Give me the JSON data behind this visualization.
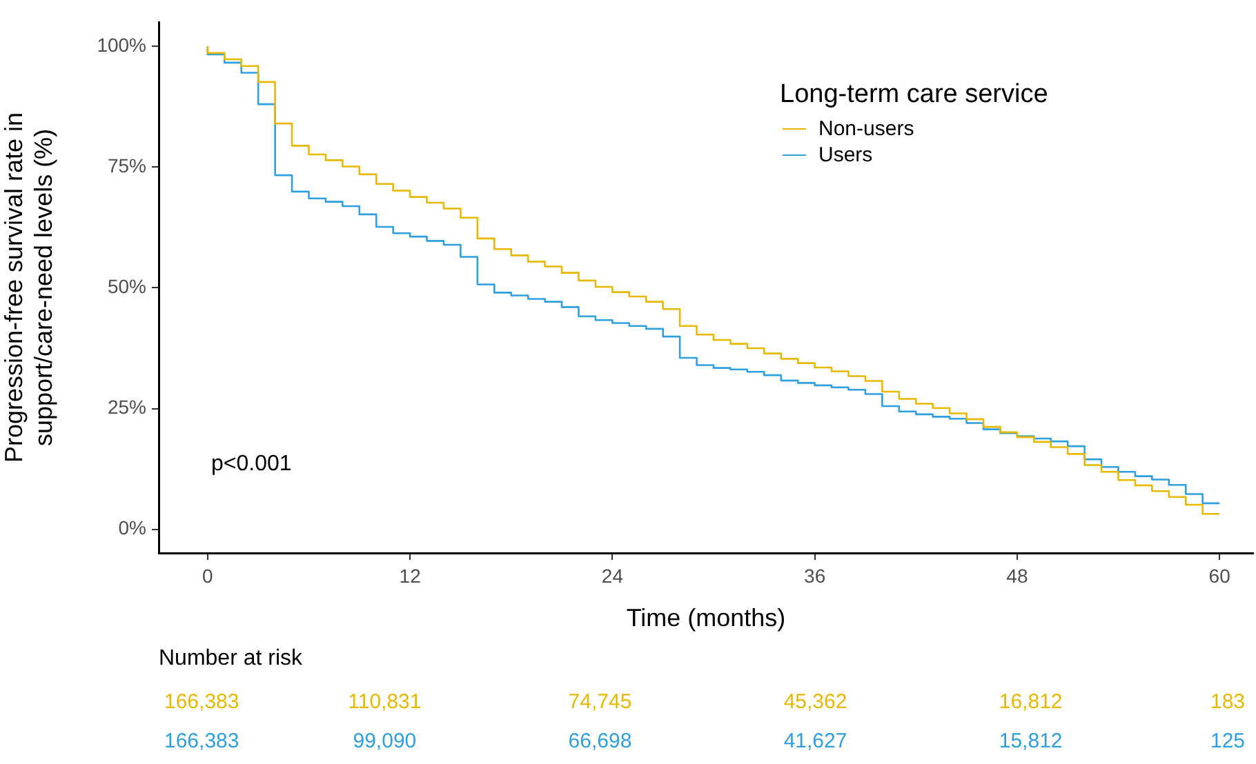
{
  "chart_data": [
    {
      "type": "step",
      "xlabel": "Time (months)",
      "ylabel": "Progression-free survival rate in\nsupport/care-need levels (%)",
      "legend_title": "Long-term care service",
      "legend": "top right",
      "annotations": [
        "p<0.001"
      ],
      "xlim": [
        -2.9,
        62
      ],
      "xticks": [
        0,
        12,
        24,
        36,
        48,
        60
      ],
      "ylim": [
        -4.9,
        105
      ],
      "yticks": [
        {
          "value": 0,
          "label": "0%"
        },
        {
          "value": 25,
          "label": "25%"
        },
        {
          "value": 50,
          "label": "50%"
        },
        {
          "value": 75,
          "label": "75%"
        },
        {
          "value": 100,
          "label": "100%"
        }
      ],
      "x": [
        0,
        1,
        2,
        3,
        4,
        5,
        6,
        7,
        8,
        9,
        10,
        11,
        12,
        13,
        14,
        15,
        16,
        17,
        18,
        19,
        20,
        21,
        22,
        23,
        24,
        25,
        26,
        27,
        28,
        29,
        30,
        31,
        32,
        33,
        34,
        35,
        36,
        37,
        38,
        39,
        40,
        41,
        42,
        43,
        44,
        45,
        46,
        47,
        48,
        49,
        50,
        51,
        52,
        53,
        54,
        55,
        56,
        57,
        58,
        59,
        60
      ],
      "series": [
        {
          "name": "Non-users",
          "color": "#e7b800",
          "values": [
            100,
            98.6,
            97.3,
            95.9,
            92.6,
            84,
            79.4,
            77.6,
            76.4,
            75.1,
            73.5,
            71.5,
            70.1,
            68.8,
            67.6,
            66.4,
            64.5,
            60.2,
            58,
            56.7,
            55.4,
            54.4,
            53.1,
            51.5,
            50.2,
            49.1,
            48.2,
            47.1,
            45.6,
            42.1,
            40.3,
            39.2,
            38.4,
            37.5,
            36.4,
            35.3,
            34.4,
            33.5,
            32.7,
            31.7,
            30.7,
            28.5,
            27,
            26,
            25.1,
            24,
            22.8,
            21.2,
            20.1,
            19.1,
            18.1,
            17,
            15.6,
            13.3,
            11.9,
            10.2,
            9.1,
            7.9,
            6.7,
            5.1,
            3.2
          ]
        },
        {
          "name": "Users",
          "color": "#2e9fdf",
          "values": [
            100,
            98.3,
            96.6,
            94.5,
            88,
            73.3,
            69.9,
            68.5,
            67.8,
            66.9,
            65.2,
            62.6,
            61.3,
            60.6,
            59.7,
            58.9,
            56.4,
            50.7,
            49,
            48.4,
            47.7,
            47.1,
            46,
            44.1,
            43.3,
            42.7,
            42.1,
            41.5,
            39.9,
            35.5,
            34,
            33.4,
            33.1,
            32.6,
            31.9,
            30.8,
            30.3,
            29.8,
            29.4,
            28.9,
            28,
            25.5,
            24.4,
            23.8,
            23.3,
            22.9,
            22,
            20.7,
            19.9,
            19.3,
            18.8,
            18.2,
            17.2,
            14.5,
            12.9,
            11.9,
            11,
            10.3,
            9.2,
            7.3,
            5.4
          ]
        }
      ]
    },
    {
      "type": "other",
      "title": "Number at risk",
      "categories": [
        null,
        null,
        null,
        null,
        null,
        null
      ],
      "annotations": [
        "166,383",
        "110,831",
        "74,745",
        "45,362",
        "16,812",
        "183",
        "166,383",
        "99,090",
        "66,698",
        "41,627",
        "15,812",
        "125"
      ],
      "colors": [
        "#e7b800",
        "#e7b800",
        "#e7b800",
        "#e7b800",
        "#e7b800",
        "#e7b800",
        "#2e9fdf",
        "#2e9fdf",
        "#2e9fdf",
        "#2e9fdf",
        "#2e9fdf",
        "#2e9fdf"
      ]
    }
  ]
}
